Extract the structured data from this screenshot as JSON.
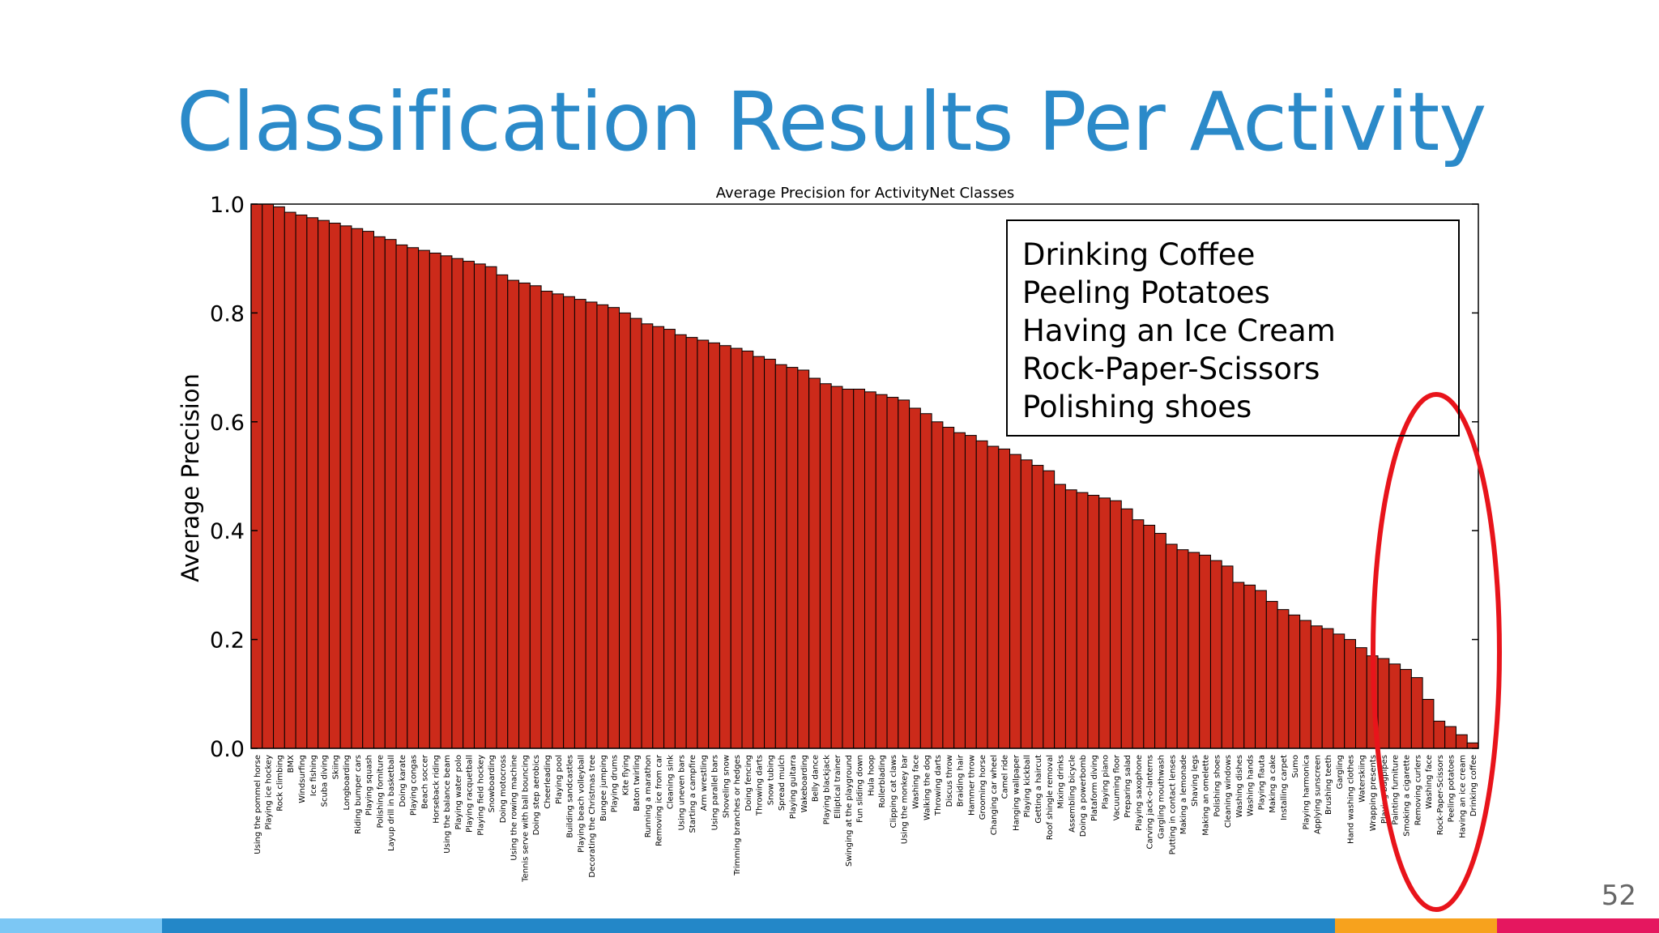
{
  "slide": {
    "title": "Classification Results Per Activity",
    "page_number": "52"
  },
  "highlighted_classes": [
    "Drinking Coffee",
    "Peeling Potatoes",
    "Having an Ice Cream",
    "Rock-Paper-Scissors",
    "Polishing shoes"
  ],
  "colors": {
    "title": "#2b8ac9",
    "bar_fill": "#cc2a1a",
    "bar_edge": "#000000",
    "highlight_ellipse": "#e8141b",
    "footer": [
      "#7cc7f4",
      "#2387c8",
      "#f7a21d",
      "#e5175f"
    ]
  },
  "chart_data": {
    "type": "bar",
    "title": "Average Precision for ActivityNet Classes",
    "xlabel": "",
    "ylabel": "Average Precision",
    "ylim": [
      0.0,
      1.0
    ],
    "yticks": [
      "0.0",
      "0.2",
      "0.4",
      "0.6",
      "0.8",
      "1.0"
    ],
    "grid": false,
    "legend": "top-right",
    "sort": "descending",
    "categories": [
      "Using the pommel horse",
      "Playing ice hockey",
      "Rock climbing",
      "BMX",
      "Windsurfing",
      "Ice fishing",
      "Scuba diving",
      "Skiing",
      "Longboarding",
      "Riding bumper cars",
      "Playing squash",
      "Polishing forniture",
      "Layup drill in basketball",
      "Doing karate",
      "Playing congas",
      "Beach soccer",
      "Horseback riding",
      "Using the balance beam",
      "Playing water polo",
      "Playing racquetball",
      "Playing field hockey",
      "Snowboarding",
      "Doing motocross",
      "Using the rowing machine",
      "Tennis serve with ball bouncing",
      "Doing step aerobics",
      "Cheerleading",
      "Playing pool",
      "Building sandcastles",
      "Playing beach volleyball",
      "Decorating the Christmas tree",
      "Bungee jumping",
      "Playing drums",
      "Kite flying",
      "Baton twirling",
      "Running a marathon",
      "Removing ice from car",
      "Cleaning sink",
      "Using uneven bars",
      "Starting a campfire",
      "Arm wrestling",
      "Using parallel bars",
      "Shoveling snow",
      "Trimming branches or hedges",
      "Doing fencing",
      "Throwing darts",
      "Snow tubing",
      "Spread mulch",
      "Playing guitarra",
      "Wakeboarding",
      "Belly dance",
      "Playing blackjack",
      "Elliptical trainer",
      "Swinging at the playground",
      "Fun sliding down",
      "Hula hoop",
      "Rollerblading",
      "Clipping cat claws",
      "Using the monkey bar",
      "Washing face",
      "Walking the dog",
      "Throwing darts",
      "Discus throw",
      "Braiding hair",
      "Hammer throw",
      "Grooming horse",
      "Changing car wheel",
      "Camel ride",
      "Hanging wallpaper",
      "Playing kickball",
      "Getting a haircut",
      "Roof shingle removal",
      "Mixing drinks",
      "Assembling bicycle",
      "Doing a powerbomb",
      "Plataform diving",
      "Playing piano",
      "Vacuuming floor",
      "Preparing salad",
      "Playing saxophone",
      "Carving jack-o-lanterns",
      "Gargling mouthwash",
      "Putting in contact lenses",
      "Making a lemonade",
      "Shaving legs",
      "Making an omelette",
      "Polishing shoes",
      "Cleaning windows",
      "Washing dishes",
      "Washing hands",
      "Playing flauta",
      "Making a cake",
      "Installing carpet",
      "Sumo",
      "Playing harmonica",
      "Applying sunscreen",
      "Brushing teeth",
      "Gargling",
      "Hand washing clothes",
      "Waterskiing",
      "Wrapping presents",
      "Playing bagpipes",
      "Painting furniture",
      "Smoking a cigarette",
      "Removing curlers",
      "Washing face",
      "Rock-Paper-Scissors",
      "Peeling potatoes",
      "Having an ice cream",
      "Drinking coffee"
    ],
    "values": [
      1.0,
      1.0,
      0.995,
      0.985,
      0.98,
      0.975,
      0.97,
      0.965,
      0.96,
      0.955,
      0.95,
      0.94,
      0.935,
      0.925,
      0.92,
      0.915,
      0.91,
      0.905,
      0.9,
      0.895,
      0.89,
      0.885,
      0.87,
      0.86,
      0.855,
      0.85,
      0.84,
      0.835,
      0.83,
      0.825,
      0.82,
      0.815,
      0.81,
      0.8,
      0.79,
      0.78,
      0.775,
      0.77,
      0.76,
      0.755,
      0.75,
      0.745,
      0.74,
      0.735,
      0.73,
      0.72,
      0.715,
      0.705,
      0.7,
      0.695,
      0.68,
      0.67,
      0.665,
      0.66,
      0.66,
      0.655,
      0.65,
      0.645,
      0.64,
      0.625,
      0.615,
      0.6,
      0.59,
      0.58,
      0.575,
      0.565,
      0.555,
      0.55,
      0.54,
      0.53,
      0.52,
      0.51,
      0.485,
      0.475,
      0.47,
      0.465,
      0.46,
      0.455,
      0.44,
      0.42,
      0.41,
      0.395,
      0.375,
      0.365,
      0.36,
      0.355,
      0.345,
      0.335,
      0.305,
      0.3,
      0.29,
      0.27,
      0.255,
      0.245,
      0.235,
      0.225,
      0.22,
      0.21,
      0.2,
      0.185,
      0.17,
      0.165,
      0.155,
      0.145,
      0.13,
      0.09,
      0.05,
      0.04,
      0.025,
      0.01
    ]
  }
}
